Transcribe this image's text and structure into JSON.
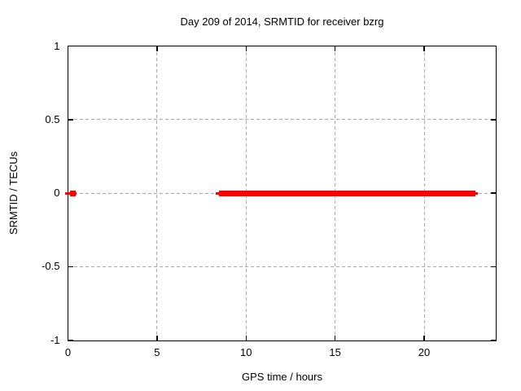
{
  "figure": {
    "background": "#ffffff"
  },
  "chart_data": {
    "type": "scatter",
    "title": "Day 209 of 2014, SRMTID for receiver bzrg",
    "xlabel": "GPS time / hours",
    "ylabel": "SRMTID / TECUs",
    "xlim": [
      0,
      24
    ],
    "ylim": [
      -1,
      1
    ],
    "xticks": [
      0,
      5,
      10,
      15,
      20
    ],
    "yticks": [
      -1,
      -0.5,
      0,
      0.5,
      1
    ],
    "grid": true,
    "grid_style": "dashed",
    "grid_color": "#ababab",
    "legend": "none",
    "marker": "filled-square",
    "series": [
      {
        "name": "SRMTID",
        "color": "#ff0000",
        "line_segments": [
          {
            "x1": -0.15,
            "x2": 0.5,
            "y": 0
          },
          {
            "x1": 8.3,
            "x2": 23.0,
            "y": 0
          }
        ],
        "point_runs": [
          {
            "x_start": 0.1,
            "x_end": 0.35,
            "y": 0
          },
          {
            "x_start": 8.5,
            "x_end": 22.9,
            "y": 0
          }
        ]
      }
    ]
  }
}
